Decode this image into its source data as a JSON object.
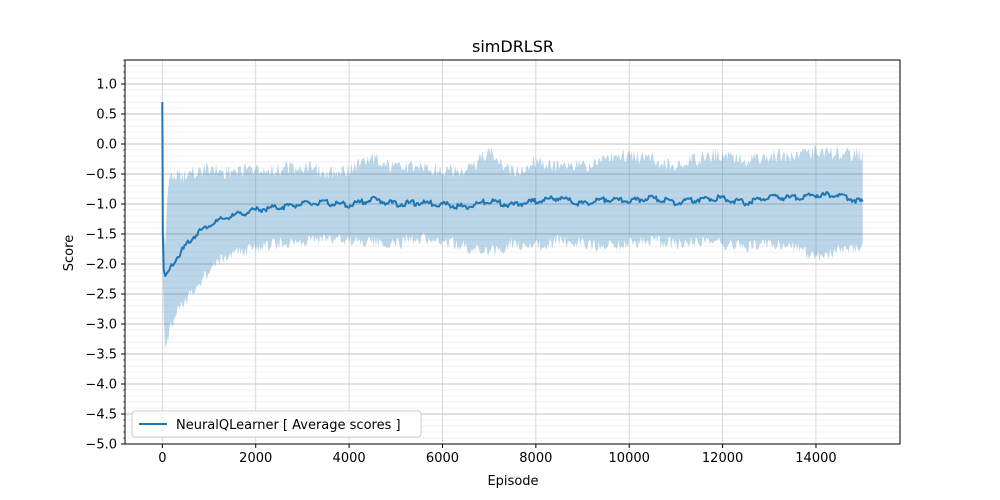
{
  "chart_data": {
    "type": "line",
    "title": "simDRLSR",
    "xlabel": "Episode",
    "ylabel": "Score",
    "xlim": [
      -800,
      15800
    ],
    "ylim": [
      -5.0,
      1.4
    ],
    "x_ticks": [
      0,
      2000,
      4000,
      6000,
      8000,
      10000,
      12000,
      14000
    ],
    "x_tick_labels": [
      "0",
      "2000",
      "4000",
      "6000",
      "8000",
      "10000",
      "12000",
      "14000"
    ],
    "y_ticks": [
      -5.0,
      -4.5,
      -4.0,
      -3.5,
      -3.0,
      -2.5,
      -2.0,
      -1.5,
      -1.0,
      -0.5,
      0.0,
      0.5,
      1.0
    ],
    "y_tick_labels": [
      "−5.0",
      "−4.5",
      "−4.0",
      "−3.5",
      "−3.0",
      "−2.5",
      "−2.0",
      "−1.5",
      "−1.0",
      "−0.5",
      "0.0",
      "0.5",
      "1.0"
    ],
    "grid": true,
    "legend_position": "lower-left",
    "colors": {
      "line": "#1f77b4",
      "band": "#1f77b4"
    },
    "series": [
      {
        "name": "NeuralQLearner [ Average scores ]",
        "x": [
          0,
          10,
          30,
          60,
          100,
          150,
          250,
          400,
          600,
          800,
          1000,
          1300,
          1600,
          2000,
          2500,
          3000,
          3500,
          4000,
          4500,
          5000,
          5500,
          6000,
          6500,
          7000,
          7500,
          8000,
          8500,
          9000,
          9500,
          10000,
          10500,
          11000,
          11500,
          12000,
          12500,
          13000,
          13500,
          14000,
          14500,
          15000
        ],
        "mean": [
          0.7,
          -1.5,
          -2.1,
          -2.2,
          -2.15,
          -2.1,
          -1.95,
          -1.8,
          -1.6,
          -1.45,
          -1.35,
          -1.25,
          -1.18,
          -1.1,
          -1.05,
          -1.0,
          -0.98,
          -1.02,
          -0.92,
          -1.0,
          -0.98,
          -1.0,
          -1.05,
          -0.95,
          -1.02,
          -0.95,
          -0.9,
          -1.0,
          -0.92,
          -0.95,
          -0.9,
          -0.98,
          -0.92,
          -0.9,
          -0.98,
          -0.88,
          -0.9,
          -0.85,
          -0.85,
          -0.97
        ],
        "upper": [
          0.7,
          -0.8,
          -1.4,
          -1.7,
          -1.0,
          -0.7,
          -0.6,
          -0.7,
          -0.6,
          -0.6,
          -0.5,
          -0.6,
          -0.55,
          -0.55,
          -0.55,
          -0.5,
          -0.6,
          -0.55,
          -0.35,
          -0.55,
          -0.5,
          -0.55,
          -0.6,
          -0.25,
          -0.6,
          -0.4,
          -0.5,
          -0.5,
          -0.4,
          -0.3,
          -0.4,
          -0.5,
          -0.35,
          -0.3,
          -0.4,
          -0.3,
          -0.35,
          -0.25,
          -0.3,
          -0.3
        ],
        "lower": [
          0.7,
          -2.2,
          -2.9,
          -3.4,
          -3.3,
          -3.0,
          -2.8,
          -2.6,
          -2.4,
          -2.2,
          -2.0,
          -1.8,
          -1.7,
          -1.65,
          -1.55,
          -1.5,
          -1.45,
          -1.5,
          -1.5,
          -1.55,
          -1.45,
          -1.5,
          -1.6,
          -1.7,
          -1.55,
          -1.6,
          -1.5,
          -1.55,
          -1.6,
          -1.55,
          -1.5,
          -1.55,
          -1.5,
          -1.55,
          -1.6,
          -1.55,
          -1.6,
          -1.8,
          -1.65,
          -1.6
        ]
      }
    ]
  }
}
